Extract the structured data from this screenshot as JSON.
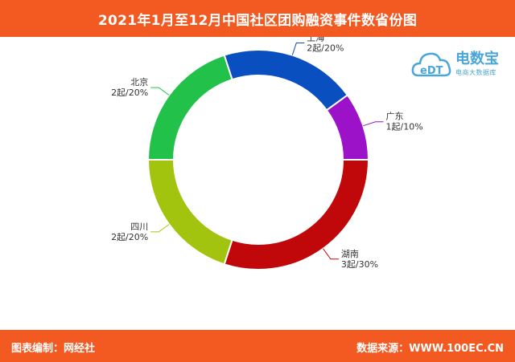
{
  "title": "2021年1月至12月中国社区团购融资事件数省份图",
  "footer": {
    "left": "图表编制：网经社",
    "right": "数据来源：WWW.100EC.CN"
  },
  "logo": {
    "mark": "eDT",
    "name": "电数宝",
    "tagline": "电商大数据库"
  },
  "chart_data": {
    "type": "pie",
    "style": "donut",
    "unit": "起",
    "slices": [
      {
        "name": "上海",
        "value": 2,
        "percent": 20,
        "label": "2起/20%",
        "color": "#0a4fc0"
      },
      {
        "name": "广东",
        "value": 1,
        "percent": 10,
        "label": "1起/10%",
        "color": "#9b12c9"
      },
      {
        "name": "湖南",
        "value": 3,
        "percent": 30,
        "label": "3起/30%",
        "color": "#c0080a"
      },
      {
        "name": "四川",
        "value": 2,
        "percent": 20,
        "label": "2起/20%",
        "color": "#a2c40e"
      },
      {
        "name": "北京",
        "value": 2,
        "percent": 20,
        "label": "2起/20%",
        "color": "#22c24a"
      }
    ]
  }
}
